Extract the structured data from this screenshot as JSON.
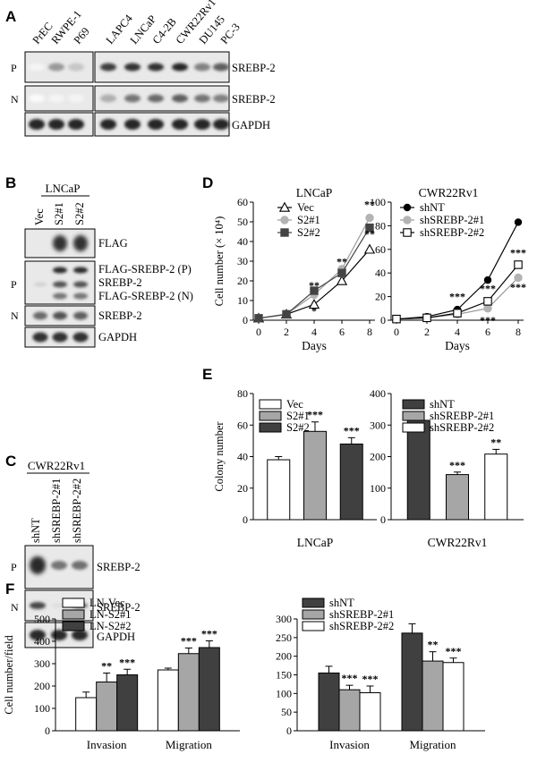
{
  "panelA": {
    "letter": "A",
    "lanes": [
      "PrEC",
      "RWPE-1",
      "P69",
      "LAPC4",
      "LNCaP",
      "C4-2B",
      "CWR22Rv1",
      "DU145",
      "PC-3"
    ],
    "rows": [
      {
        "side": "P",
        "label": "SREBP-2",
        "intensity": [
          0.05,
          0.45,
          0.25,
          0.85,
          0.9,
          0.9,
          0.95,
          0.55,
          0.7
        ]
      },
      {
        "side": "N",
        "label": "SREBP-2",
        "intensity": [
          0.02,
          0.05,
          0.05,
          0.35,
          0.6,
          0.65,
          0.7,
          0.6,
          0.55
        ]
      },
      {
        "side": "",
        "label": "GAPDH",
        "intensity": [
          0.95,
          0.95,
          0.95,
          0.95,
          0.95,
          0.95,
          0.95,
          0.95,
          0.95
        ]
      }
    ]
  },
  "panelB": {
    "letter": "B",
    "group": "LNCaP",
    "lanes": [
      "Vec",
      "S2#1",
      "S2#2"
    ],
    "rows": [
      {
        "side": "",
        "labels": [
          "FLAG"
        ]
      },
      {
        "side": "P",
        "labels": [
          "FLAG-SREBP-2 (P)",
          "SREBP-2",
          "FLAG-SREBP-2 (N)"
        ]
      },
      {
        "side": "N",
        "labels": [
          "SREBP-2"
        ]
      },
      {
        "side": "",
        "labels": [
          "GAPDH"
        ]
      }
    ]
  },
  "panelC": {
    "letter": "C",
    "group": "CWR22Rv1",
    "lanes": [
      "shNT",
      "shSREBP-2#1",
      "shSREBP-2#2"
    ],
    "rows": [
      {
        "side": "P",
        "label": "SREBP-2"
      },
      {
        "side": "N",
        "label": "SREBP-2"
      },
      {
        "side": "",
        "label": "GAPDH"
      }
    ]
  },
  "chart_data": [
    {
      "panel": "D",
      "type": "line",
      "title": "LNCaP",
      "xlabel": "Days",
      "ylabel": "Cell number (× 10⁴)",
      "x": [
        0,
        2,
        4,
        6,
        8
      ],
      "xticks": [
        "0",
        "2",
        "4",
        "6",
        "8"
      ],
      "ylim": [
        0,
        60
      ],
      "yticks": [
        "0",
        "10",
        "20",
        "30",
        "40",
        "50",
        "60"
      ],
      "series": [
        {
          "name": "Vec",
          "marker": "triangle-open",
          "values": [
            1,
            3,
            8,
            20,
            36
          ]
        },
        {
          "name": "S2#1",
          "marker": "circle-gray",
          "values": [
            1,
            3,
            13,
            26,
            52
          ]
        },
        {
          "name": "S2#2",
          "marker": "square-dark",
          "values": [
            1,
            3,
            15,
            24,
            47
          ]
        }
      ],
      "annotations": [
        {
          "x": 4,
          "y": 16,
          "text": "**"
        },
        {
          "x": 4,
          "y": 3,
          "text": "*"
        },
        {
          "x": 6,
          "y": 28,
          "text": "**"
        },
        {
          "x": 8,
          "y": 57,
          "text": "**"
        },
        {
          "x": 8,
          "y": 42,
          "text": "**"
        }
      ]
    },
    {
      "panel": "D",
      "type": "line",
      "title": "CWR22Rv1",
      "xlabel": "Days",
      "ylabel": "",
      "x": [
        0,
        2,
        4,
        6,
        8
      ],
      "xticks": [
        "0",
        "2",
        "4",
        "6",
        "8"
      ],
      "ylim": [
        0,
        100
      ],
      "yticks": [
        "0",
        "20",
        "40",
        "60",
        "80",
        "100"
      ],
      "series": [
        {
          "name": "shNT",
          "marker": "circle-black",
          "values": [
            1,
            3,
            9,
            34,
            83
          ]
        },
        {
          "name": "shSREBP-2#1",
          "marker": "circle-gray",
          "values": [
            1,
            2,
            5,
            10,
            36
          ]
        },
        {
          "name": "shSREBP-2#2",
          "marker": "square-open",
          "values": [
            1,
            2,
            6,
            16,
            47
          ]
        }
      ],
      "annotations": [
        {
          "x": 4,
          "y": 17,
          "text": "***"
        },
        {
          "x": 6,
          "y": 24,
          "text": "***"
        },
        {
          "x": 6,
          "y": -3,
          "text": "***"
        },
        {
          "x": 8,
          "y": 54,
          "text": "***"
        },
        {
          "x": 8,
          "y": 25,
          "text": "***"
        }
      ]
    },
    {
      "panel": "E",
      "type": "bar",
      "title": "",
      "xlabel": "LNCaP",
      "ylabel": "Colony number",
      "categories": [
        "Vec",
        "S2#1",
        "S2#2"
      ],
      "values": [
        38,
        56,
        48
      ],
      "errors": [
        2,
        6,
        4
      ],
      "fills": [
        "#ffffff",
        "#a6a6a6",
        "#404040"
      ],
      "ylim": [
        0,
        80
      ],
      "yticks": [
        "0",
        "20",
        "40",
        "60",
        "80"
      ],
      "sig": [
        "",
        "***",
        "***"
      ],
      "legend": "top-left"
    },
    {
      "panel": "E",
      "type": "bar",
      "title": "",
      "xlabel": "CWR22Rv1",
      "ylabel": "",
      "categories": [
        "shNT",
        "shSREBP-2#1",
        "shSREBP-2#2"
      ],
      "values": [
        315,
        143,
        208
      ],
      "errors": [
        25,
        8,
        15
      ],
      "fills": [
        "#404040",
        "#a6a6a6",
        "#ffffff"
      ],
      "ylim": [
        0,
        400
      ],
      "yticks": [
        "0",
        "100",
        "200",
        "300",
        "400"
      ],
      "sig": [
        "",
        "***",
        "**"
      ],
      "legend": "top-right"
    },
    {
      "panel": "F",
      "type": "bar",
      "title": "",
      "xlabel": "",
      "ylabel": "Cell number/field",
      "categories": [
        "Invasion",
        "Migration"
      ],
      "series": [
        {
          "name": "LN-Vec",
          "fill": "#ffffff",
          "values": [
            148,
            272
          ],
          "errors": [
            25,
            8
          ],
          "sig": [
            "",
            ""
          ]
        },
        {
          "name": "LN-S2#1",
          "fill": "#a6a6a6",
          "values": [
            218,
            345
          ],
          "errors": [
            40,
            25
          ],
          "sig": [
            "**",
            "***"
          ]
        },
        {
          "name": "LN-S2#2",
          "fill": "#404040",
          "values": [
            250,
            372
          ],
          "errors": [
            25,
            30
          ],
          "sig": [
            "***",
            "***"
          ]
        }
      ],
      "ylim": [
        0,
        500
      ],
      "yticks": [
        "0",
        "100",
        "200",
        "300",
        "400",
        "500"
      ],
      "legend": "top-left"
    },
    {
      "panel": "F",
      "type": "bar",
      "title": "",
      "xlabel": "",
      "ylabel": "",
      "categories": [
        "Invasion",
        "Migration"
      ],
      "series": [
        {
          "name": "shNT",
          "fill": "#404040",
          "values": [
            155,
            262
          ],
          "errors": [
            18,
            25
          ],
          "sig": [
            "",
            ""
          ]
        },
        {
          "name": "shSREBP-2#1",
          "fill": "#a6a6a6",
          "values": [
            110,
            187
          ],
          "errors": [
            12,
            25
          ],
          "sig": [
            "***",
            "**"
          ]
        },
        {
          "name": "shSREBP-2#2",
          "fill": "#ffffff",
          "values": [
            102,
            183
          ],
          "errors": [
            18,
            12
          ],
          "sig": [
            "***",
            "***"
          ]
        }
      ],
      "ylim": [
        0,
        300
      ],
      "yticks": [
        "0",
        "50",
        "100",
        "150",
        "200",
        "250",
        "300"
      ],
      "legend": "top-left"
    }
  ],
  "letters": {
    "D": "D",
    "E": "E",
    "F": "F"
  }
}
